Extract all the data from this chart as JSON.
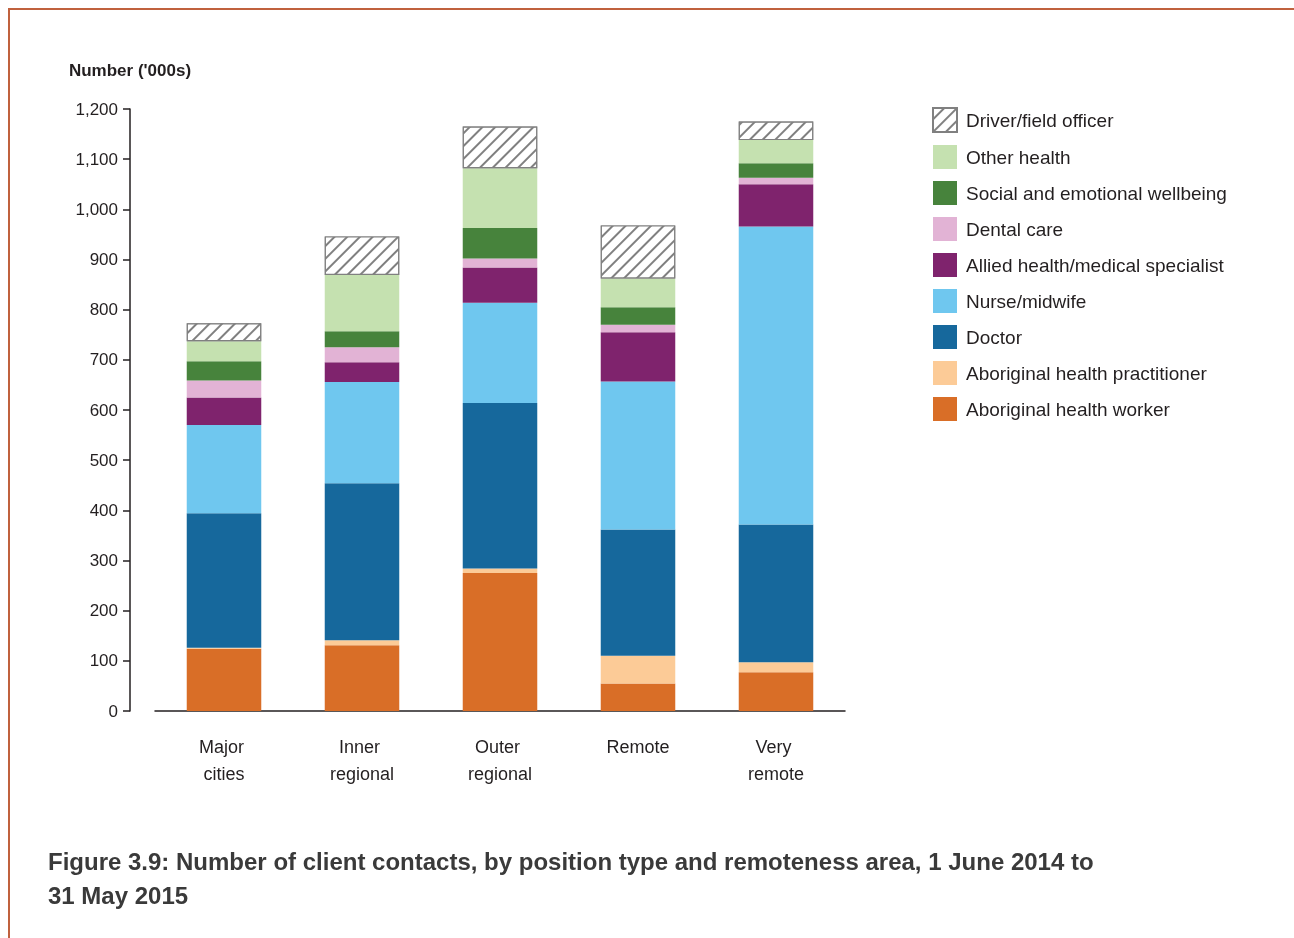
{
  "chart_data": {
    "type": "bar",
    "stacked": true,
    "title": "Figure 3.9: Number of client contacts, by position type and remoteness area, 1 June 2014 to 31 May 2015",
    "ylabel": "Number ('000s)",
    "categories": [
      "Major cities",
      "Inner regional",
      "Outer regional",
      "Remote",
      "Very remote"
    ],
    "ylim": [
      0,
      1200
    ],
    "yticks": [
      0,
      100,
      200,
      300,
      400,
      500,
      600,
      700,
      800,
      900,
      {
        "value": 1000,
        "label": "1,000"
      },
      {
        "value": 1100,
        "label": "1,100"
      },
      {
        "value": 1200,
        "label": "1,200"
      }
    ],
    "grid": false,
    "legend": "right",
    "series": [
      {
        "name": "Aboriginal health worker",
        "color": "#d96e27",
        "values": [
          124,
          131,
          275,
          55,
          77
        ]
      },
      {
        "name": "Aboriginal health practitioner",
        "color": "#fccb97",
        "values": [
          2,
          10,
          9,
          55,
          20
        ]
      },
      {
        "name": "Doctor",
        "color": "#16689c",
        "values": [
          268,
          313,
          330,
          252,
          275
        ]
      },
      {
        "name": "Nurse/midwife",
        "color": "#6fc7ef",
        "values": [
          176,
          202,
          200,
          295,
          594
        ]
      },
      {
        "name": "Allied health/medical specialist",
        "color": "#7f236d",
        "values": [
          55,
          39,
          70,
          98,
          84
        ]
      },
      {
        "name": "Dental care",
        "color": "#e2b3d5",
        "values": [
          34,
          30,
          18,
          15,
          13
        ]
      },
      {
        "name": "Social and emotional wellbeing",
        "color": "#47833c",
        "values": [
          38,
          32,
          61,
          35,
          29
        ]
      },
      {
        "name": "Other health",
        "color": "#c5e1b0",
        "values": [
          40,
          112,
          119,
          57,
          46
        ]
      },
      {
        "name": "Driver/field officer",
        "color": "#808080",
        "values": [
          36,
          77,
          83,
          106,
          37
        ]
      }
    ]
  }
}
